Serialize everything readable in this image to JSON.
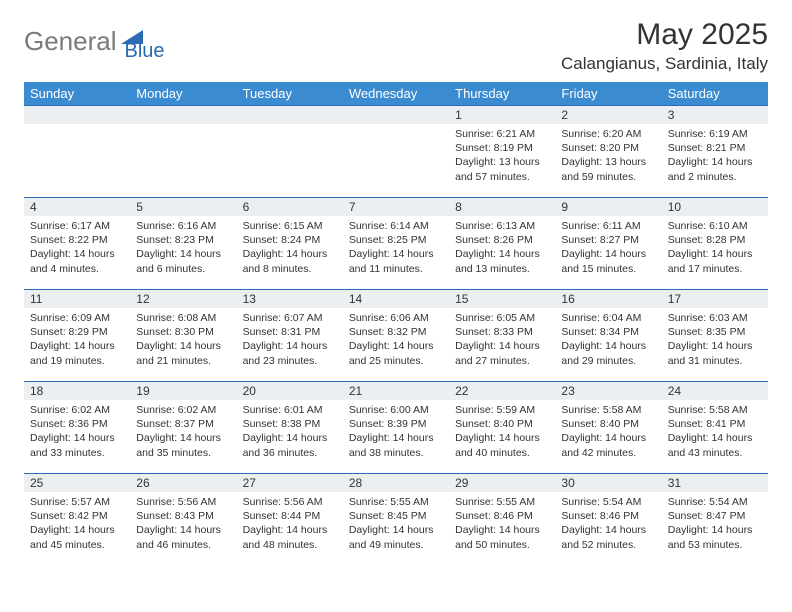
{
  "logo": {
    "text1": "General",
    "text2": "Blue"
  },
  "title": "May 2025",
  "location": "Calangianus, Sardinia, Italy",
  "colors": {
    "header_bg": "#3b8bd0",
    "header_text": "#ffffff",
    "border": "#2a6bb3",
    "daynum_bg": "#eceff1",
    "text": "#333333",
    "logo_gray": "#7a7a7a",
    "logo_blue": "#2a6bb3"
  },
  "weekdays": [
    "Sunday",
    "Monday",
    "Tuesday",
    "Wednesday",
    "Thursday",
    "Friday",
    "Saturday"
  ],
  "leading_blanks": 4,
  "days": [
    {
      "n": "1",
      "sunrise": "6:21 AM",
      "sunset": "8:19 PM",
      "daylight": "13 hours and 57 minutes."
    },
    {
      "n": "2",
      "sunrise": "6:20 AM",
      "sunset": "8:20 PM",
      "daylight": "13 hours and 59 minutes."
    },
    {
      "n": "3",
      "sunrise": "6:19 AM",
      "sunset": "8:21 PM",
      "daylight": "14 hours and 2 minutes."
    },
    {
      "n": "4",
      "sunrise": "6:17 AM",
      "sunset": "8:22 PM",
      "daylight": "14 hours and 4 minutes."
    },
    {
      "n": "5",
      "sunrise": "6:16 AM",
      "sunset": "8:23 PM",
      "daylight": "14 hours and 6 minutes."
    },
    {
      "n": "6",
      "sunrise": "6:15 AM",
      "sunset": "8:24 PM",
      "daylight": "14 hours and 8 minutes."
    },
    {
      "n": "7",
      "sunrise": "6:14 AM",
      "sunset": "8:25 PM",
      "daylight": "14 hours and 11 minutes."
    },
    {
      "n": "8",
      "sunrise": "6:13 AM",
      "sunset": "8:26 PM",
      "daylight": "14 hours and 13 minutes."
    },
    {
      "n": "9",
      "sunrise": "6:11 AM",
      "sunset": "8:27 PM",
      "daylight": "14 hours and 15 minutes."
    },
    {
      "n": "10",
      "sunrise": "6:10 AM",
      "sunset": "8:28 PM",
      "daylight": "14 hours and 17 minutes."
    },
    {
      "n": "11",
      "sunrise": "6:09 AM",
      "sunset": "8:29 PM",
      "daylight": "14 hours and 19 minutes."
    },
    {
      "n": "12",
      "sunrise": "6:08 AM",
      "sunset": "8:30 PM",
      "daylight": "14 hours and 21 minutes."
    },
    {
      "n": "13",
      "sunrise": "6:07 AM",
      "sunset": "8:31 PM",
      "daylight": "14 hours and 23 minutes."
    },
    {
      "n": "14",
      "sunrise": "6:06 AM",
      "sunset": "8:32 PM",
      "daylight": "14 hours and 25 minutes."
    },
    {
      "n": "15",
      "sunrise": "6:05 AM",
      "sunset": "8:33 PM",
      "daylight": "14 hours and 27 minutes."
    },
    {
      "n": "16",
      "sunrise": "6:04 AM",
      "sunset": "8:34 PM",
      "daylight": "14 hours and 29 minutes."
    },
    {
      "n": "17",
      "sunrise": "6:03 AM",
      "sunset": "8:35 PM",
      "daylight": "14 hours and 31 minutes."
    },
    {
      "n": "18",
      "sunrise": "6:02 AM",
      "sunset": "8:36 PM",
      "daylight": "14 hours and 33 minutes."
    },
    {
      "n": "19",
      "sunrise": "6:02 AM",
      "sunset": "8:37 PM",
      "daylight": "14 hours and 35 minutes."
    },
    {
      "n": "20",
      "sunrise": "6:01 AM",
      "sunset": "8:38 PM",
      "daylight": "14 hours and 36 minutes."
    },
    {
      "n": "21",
      "sunrise": "6:00 AM",
      "sunset": "8:39 PM",
      "daylight": "14 hours and 38 minutes."
    },
    {
      "n": "22",
      "sunrise": "5:59 AM",
      "sunset": "8:40 PM",
      "daylight": "14 hours and 40 minutes."
    },
    {
      "n": "23",
      "sunrise": "5:58 AM",
      "sunset": "8:40 PM",
      "daylight": "14 hours and 42 minutes."
    },
    {
      "n": "24",
      "sunrise": "5:58 AM",
      "sunset": "8:41 PM",
      "daylight": "14 hours and 43 minutes."
    },
    {
      "n": "25",
      "sunrise": "5:57 AM",
      "sunset": "8:42 PM",
      "daylight": "14 hours and 45 minutes."
    },
    {
      "n": "26",
      "sunrise": "5:56 AM",
      "sunset": "8:43 PM",
      "daylight": "14 hours and 46 minutes."
    },
    {
      "n": "27",
      "sunrise": "5:56 AM",
      "sunset": "8:44 PM",
      "daylight": "14 hours and 48 minutes."
    },
    {
      "n": "28",
      "sunrise": "5:55 AM",
      "sunset": "8:45 PM",
      "daylight": "14 hours and 49 minutes."
    },
    {
      "n": "29",
      "sunrise": "5:55 AM",
      "sunset": "8:46 PM",
      "daylight": "14 hours and 50 minutes."
    },
    {
      "n": "30",
      "sunrise": "5:54 AM",
      "sunset": "8:46 PM",
      "daylight": "14 hours and 52 minutes."
    },
    {
      "n": "31",
      "sunrise": "5:54 AM",
      "sunset": "8:47 PM",
      "daylight": "14 hours and 53 minutes."
    }
  ],
  "labels": {
    "sunrise": "Sunrise:",
    "sunset": "Sunset:",
    "daylight": "Daylight:"
  }
}
